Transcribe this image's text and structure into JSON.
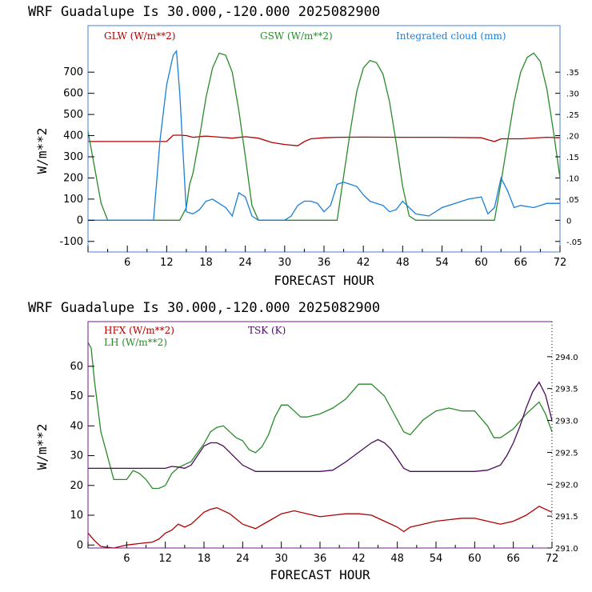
{
  "chart_data": [
    {
      "type": "line",
      "title": "WRF  Guadalupe Is  30.000,-120.000  2025082900",
      "xlabel": "FORECAST HOUR",
      "ylabel": "W/m**2",
      "xlim": [
        0,
        72
      ],
      "ylim": [
        -150,
        920
      ],
      "xticks": [
        6,
        12,
        18,
        24,
        30,
        36,
        42,
        48,
        54,
        60,
        66,
        72
      ],
      "yticks": [
        -100,
        0,
        100,
        200,
        300,
        400,
        500,
        600,
        700
      ],
      "right_axis": {
        "ylim": [
          -0.075,
          0.46
        ],
        "ticks": [
          -0.05,
          0,
          0.05,
          0.1,
          0.15,
          0.2,
          0.25,
          0.3,
          0.35
        ],
        "tick_labels": [
          "-.05",
          "0",
          ".05",
          ".10",
          ".15",
          ".20",
          ".25",
          ".30",
          ".35"
        ]
      },
      "series": [
        {
          "name": "GLW (W/m**2)",
          "color": "#b00000",
          "axis": "left",
          "x": [
            0,
            12,
            13,
            14,
            15,
            16,
            18,
            20,
            22,
            24,
            26,
            28,
            30,
            32,
            33,
            34,
            36,
            38,
            42,
            48,
            54,
            60,
            61,
            62,
            63,
            66,
            70,
            72
          ],
          "y": [
            372,
            372,
            402,
            402,
            400,
            392,
            398,
            393,
            388,
            395,
            388,
            368,
            358,
            352,
            372,
            385,
            390,
            392,
            393,
            392,
            392,
            390,
            380,
            372,
            385,
            385,
            392,
            390
          ]
        },
        {
          "name": "GSW (W/m**2)",
          "color": "#2a8a2a",
          "axis": "left",
          "x": [
            0,
            1,
            2,
            3,
            14,
            15,
            15.5,
            16,
            17,
            18,
            19,
            20,
            21,
            22,
            23,
            24,
            25,
            26,
            38,
            39,
            40,
            41,
            42,
            43,
            44,
            45,
            46,
            47,
            48,
            49,
            50,
            62,
            63,
            64,
            65,
            66,
            67,
            68,
            69,
            70,
            71,
            72
          ],
          "y": [
            420,
            250,
            80,
            0,
            0,
            60,
            170,
            220,
            390,
            580,
            720,
            790,
            780,
            700,
            520,
            300,
            70,
            0,
            0,
            210,
            420,
            610,
            720,
            755,
            745,
            690,
            560,
            370,
            160,
            20,
            0,
            0,
            180,
            370,
            560,
            700,
            770,
            790,
            750,
            620,
            420,
            200
          ]
        },
        {
          "name": "Integrated cloud (mm)",
          "color": "#1a7fd6",
          "axis": "right",
          "x": [
            0,
            10,
            11,
            12,
            13,
            13.5,
            14,
            15,
            16,
            17,
            18,
            19,
            20,
            21,
            22,
            23,
            24,
            25,
            26,
            30,
            31,
            32,
            33,
            34,
            35,
            36,
            37,
            38,
            39,
            40,
            41,
            42,
            43,
            44,
            45,
            46,
            47,
            48,
            50,
            52,
            54,
            56,
            58,
            60,
            61,
            62,
            63,
            64,
            65,
            66,
            68,
            70,
            72
          ],
          "y": [
            0,
            0,
            0.19,
            0.32,
            0.39,
            0.4,
            0.3,
            0.02,
            0.015,
            0.025,
            0.045,
            0.05,
            0.04,
            0.03,
            0.01,
            0.065,
            0.055,
            0.01,
            0,
            0,
            0.01,
            0.035,
            0.045,
            0.045,
            0.04,
            0.02,
            0.035,
            0.085,
            0.09,
            0.085,
            0.08,
            0.06,
            0.045,
            0.04,
            0.035,
            0.02,
            0.025,
            0.045,
            0.015,
            0.01,
            0.03,
            0.04,
            0.05,
            0.055,
            0.015,
            0.03,
            0.1,
            0.07,
            0.03,
            0.035,
            0.03,
            0.04,
            0.04
          ]
        }
      ]
    },
    {
      "type": "line",
      "title": "WRF  Guadalupe Is  30.000,-120.000  2025082900",
      "xlabel": "FORECAST HOUR",
      "ylabel": "W/m**2",
      "xlim": [
        0,
        72
      ],
      "ylim": [
        -1,
        75
      ],
      "xticks": [
        6,
        12,
        18,
        24,
        30,
        36,
        42,
        48,
        54,
        60,
        66,
        72
      ],
      "yticks": [
        0,
        10,
        20,
        30,
        40,
        50,
        60
      ],
      "right_axis": {
        "ylim": [
          291.0,
          294.55
        ],
        "ticks": [
          291.0,
          291.5,
          292.0,
          292.5,
          293.0,
          293.5,
          294.0
        ],
        "tick_labels": [
          "291.0",
          "291.5",
          "292.0",
          "292.5",
          "293.0",
          "293.5",
          "294.0"
        ]
      },
      "series": [
        {
          "name": "HFX (W/m**2)",
          "color": "#b00000",
          "axis": "left",
          "x": [
            0,
            1,
            2,
            4,
            6,
            8,
            10,
            11,
            12,
            13,
            14,
            15,
            16,
            17,
            18,
            19,
            20,
            22,
            24,
            26,
            28,
            30,
            32,
            34,
            36,
            38,
            40,
            42,
            44,
            46,
            48,
            49,
            50,
            52,
            54,
            56,
            58,
            60,
            62,
            64,
            66,
            68,
            70,
            72
          ],
          "y": [
            4,
            1.5,
            -0.5,
            -1,
            0,
            0.5,
            1,
            2,
            4,
            5,
            7,
            6,
            7,
            9,
            11,
            12,
            12.5,
            10.5,
            7,
            5.5,
            8,
            10.5,
            11.5,
            10.5,
            9.5,
            10,
            10.5,
            10.5,
            10,
            8,
            6,
            4.5,
            6,
            7,
            8,
            8.5,
            9,
            9,
            8,
            7,
            8,
            10,
            13,
            11
          ]
        },
        {
          "name": "LH  (W/m**2)",
          "color": "#2a8a2a",
          "axis": "left",
          "x": [
            0,
            0.5,
            1,
            2,
            3,
            4,
            6,
            7,
            8,
            9,
            10,
            11,
            12,
            13,
            14,
            15,
            16,
            17,
            18,
            19,
            20,
            21,
            22,
            23,
            24,
            25,
            26,
            27,
            28,
            29,
            30,
            31,
            32,
            33,
            34,
            36,
            38,
            40,
            42,
            44,
            46,
            47,
            48,
            49,
            50,
            52,
            54,
            56,
            58,
            60,
            62,
            63,
            64,
            66,
            68,
            70,
            71,
            72
          ],
          "y": [
            68,
            66,
            55,
            38,
            30,
            22,
            22,
            25,
            24,
            22,
            19,
            19,
            20,
            24,
            26,
            27,
            28,
            31,
            34,
            38,
            39.5,
            40,
            38,
            36,
            35,
            32,
            31,
            33,
            37,
            43,
            47,
            47,
            45,
            43,
            43,
            44,
            46,
            49,
            54,
            54,
            50,
            46,
            42,
            38,
            37,
            42,
            45,
            46,
            45,
            45,
            40,
            36,
            36,
            39,
            44,
            48,
            44,
            38
          ]
        },
        {
          "name": "TSK (K)",
          "color": "#4b0a5e",
          "axis": "right",
          "x": [
            0,
            12,
            13,
            14,
            15,
            16,
            18,
            19,
            20,
            21,
            22,
            23,
            24,
            26,
            30,
            36,
            38,
            40,
            42,
            44,
            45,
            46,
            47,
            48,
            49,
            50,
            54,
            60,
            62,
            64,
            65,
            66,
            67,
            68,
            69,
            70,
            71,
            72
          ],
          "y": [
            292.25,
            292.25,
            292.28,
            292.27,
            292.25,
            292.3,
            292.6,
            292.65,
            292.65,
            292.6,
            292.5,
            292.4,
            292.3,
            292.2,
            292.2,
            292.2,
            292.22,
            292.35,
            292.5,
            292.65,
            292.7,
            292.65,
            292.55,
            292.4,
            292.25,
            292.2,
            292.2,
            292.2,
            292.22,
            292.3,
            292.45,
            292.65,
            292.9,
            293.2,
            293.45,
            293.6,
            293.4,
            293.0
          ]
        }
      ]
    }
  ]
}
